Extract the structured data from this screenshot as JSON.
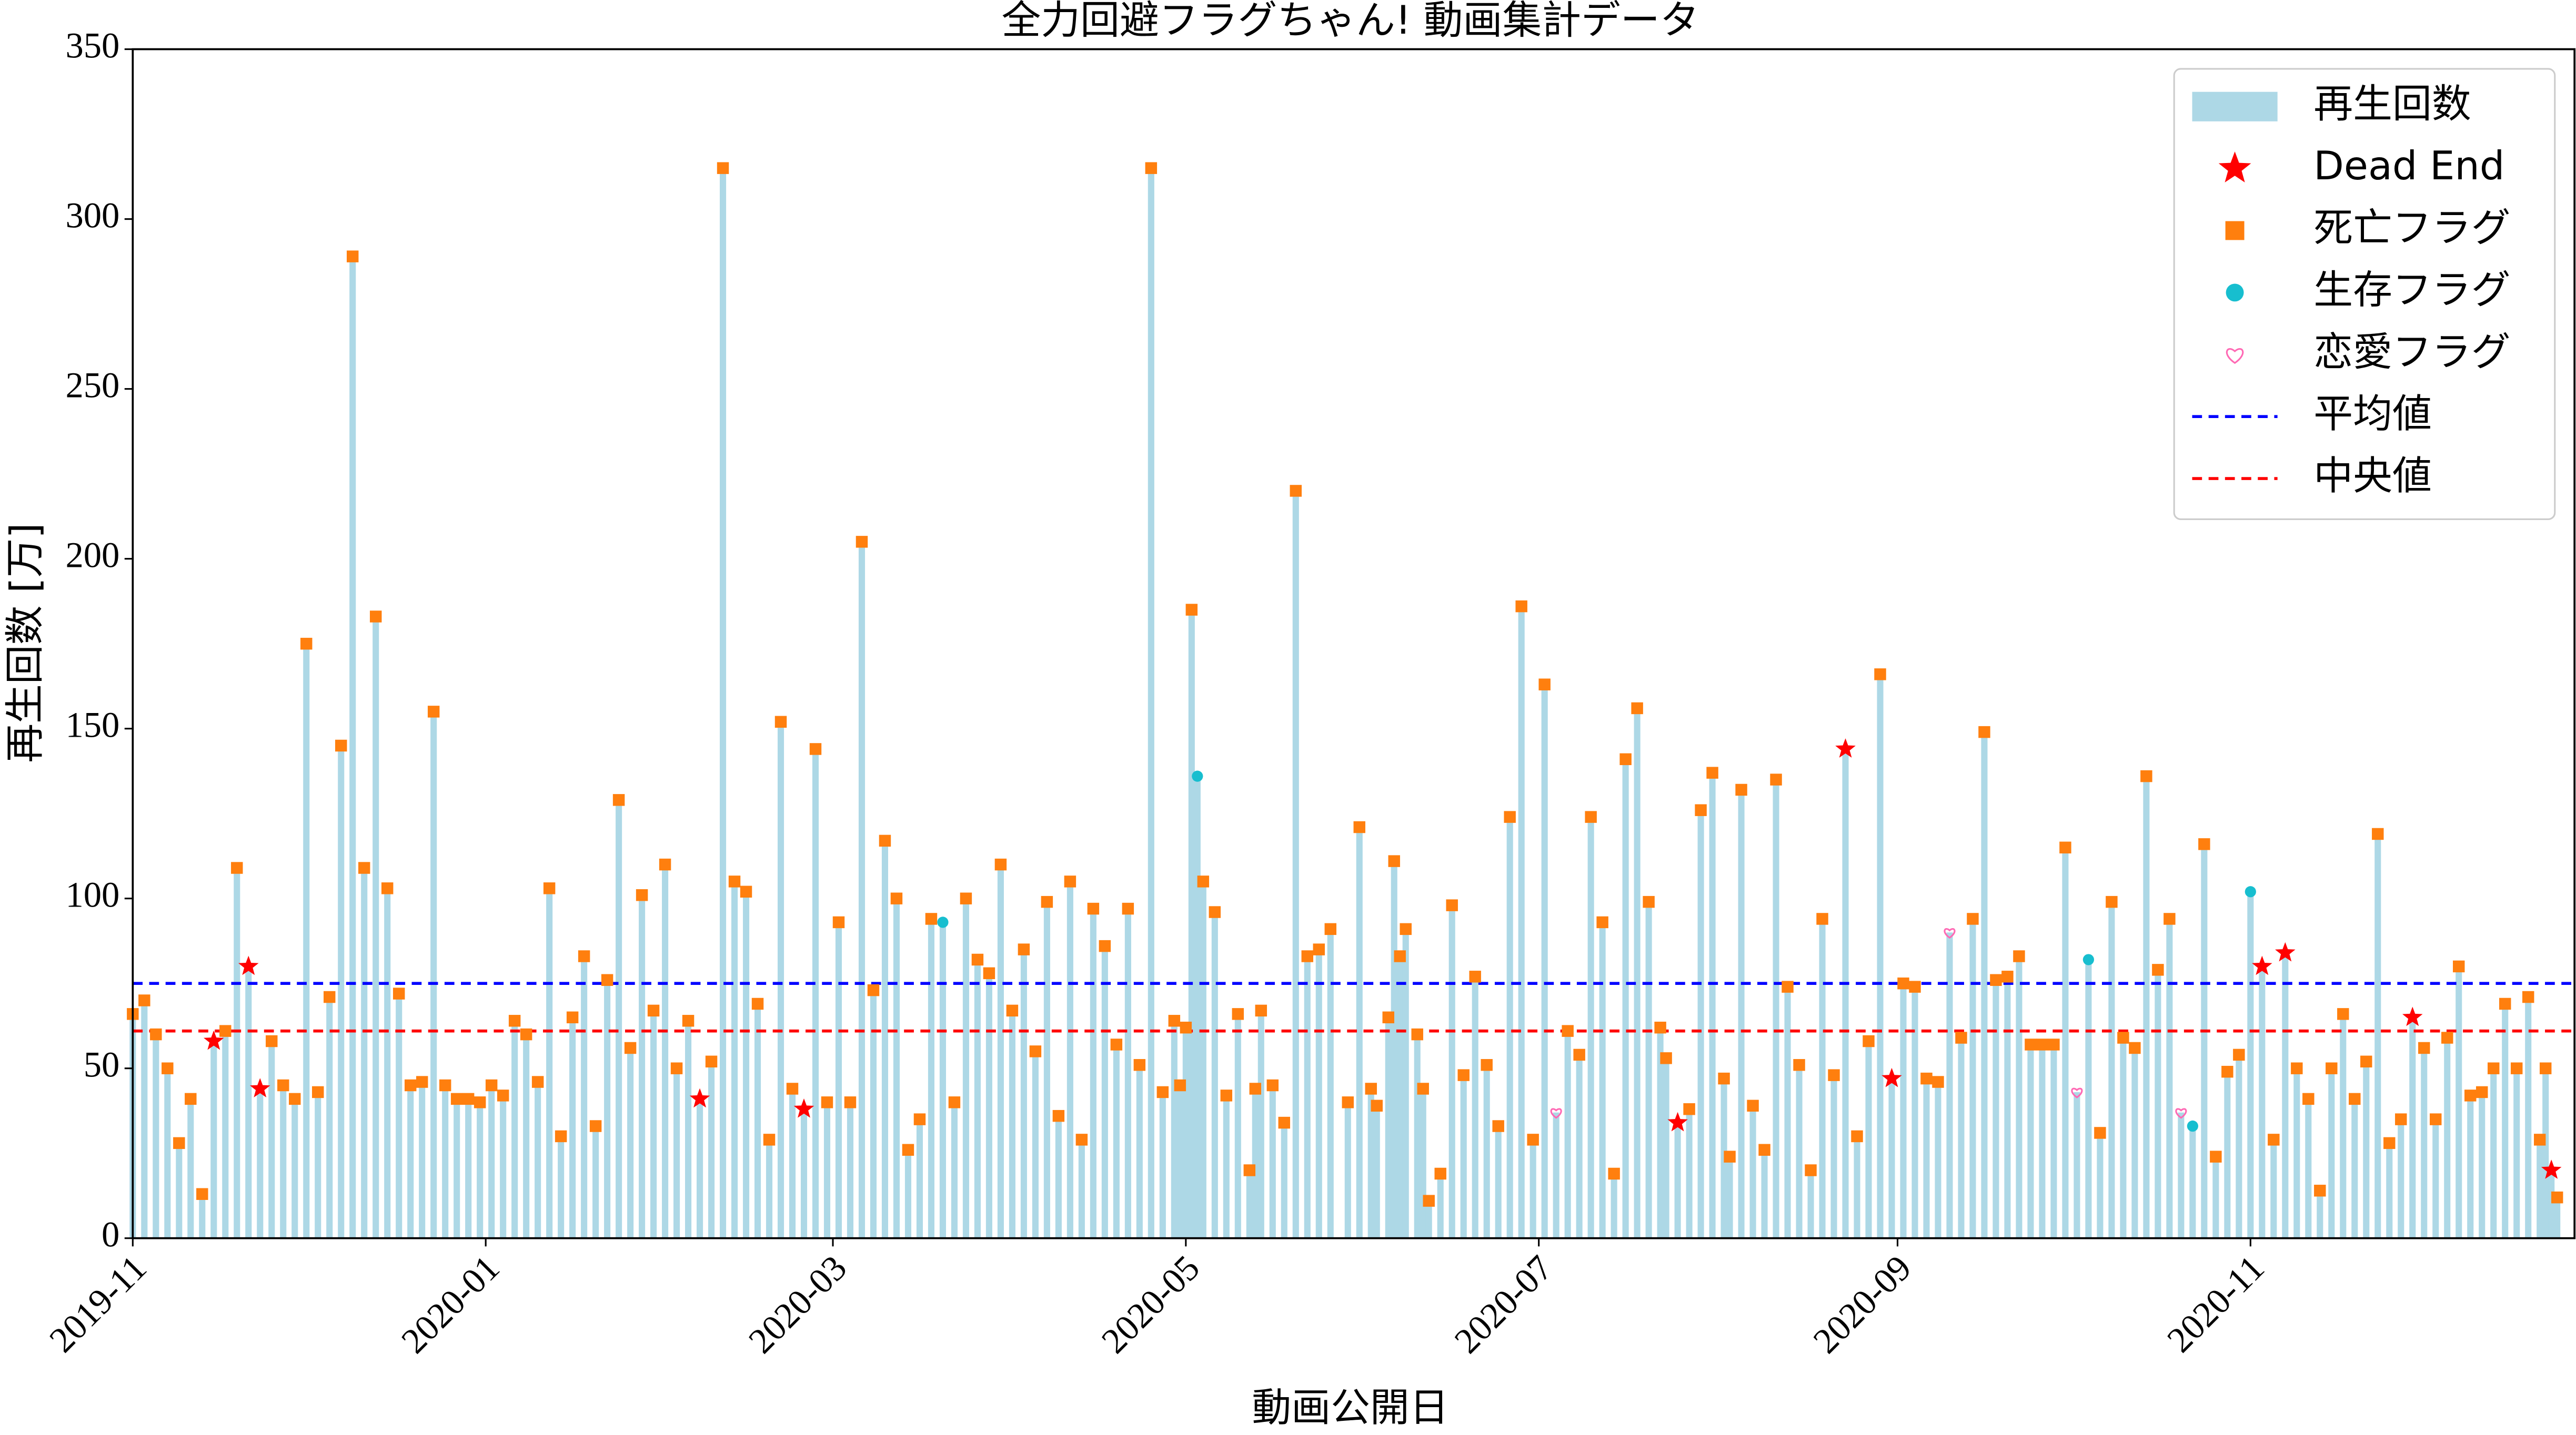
{
  "chart_data": {
    "type": "bar",
    "title": "全力回避フラグちゃん! 動画集計データ",
    "xlabel": "動画公開日",
    "ylabel": "再生回数 [万]",
    "xlim": [
      "2019-11-01",
      "2020-12-27"
    ],
    "xticks": [
      {
        "value": "2019-11-01",
        "label": "2019-11"
      },
      {
        "value": "2020-01-01",
        "label": "2020-01"
      },
      {
        "value": "2020-03-01",
        "label": "2020-03"
      },
      {
        "value": "2020-05-01",
        "label": "2020-05"
      },
      {
        "value": "2020-07-01",
        "label": "2020-07"
      },
      {
        "value": "2020-09-01",
        "label": "2020-09"
      },
      {
        "value": "2020-11-01",
        "label": "2020-11"
      }
    ],
    "ylim": [
      0,
      350
    ],
    "yticks": [
      0,
      50,
      100,
      150,
      200,
      250,
      300,
      350
    ],
    "legend": "upper right",
    "x": [
      "2019-11-01",
      "2019-11-03",
      "2019-11-05",
      "2019-11-07",
      "2019-11-09",
      "2019-11-11",
      "2019-11-13",
      "2019-11-15",
      "2019-11-17",
      "2019-11-19",
      "2019-11-21",
      "2019-11-23",
      "2019-11-25",
      "2019-11-27",
      "2019-11-29",
      "2019-12-01",
      "2019-12-03",
      "2019-12-05",
      "2019-12-07",
      "2019-12-09",
      "2019-12-11",
      "2019-12-13",
      "2019-12-15",
      "2019-12-17",
      "2019-12-19",
      "2019-12-21",
      "2019-12-23",
      "2019-12-25",
      "2019-12-27",
      "2019-12-29",
      "2019-12-31",
      "2020-01-02",
      "2020-01-04",
      "2020-01-06",
      "2020-01-08",
      "2020-01-10",
      "2020-01-12",
      "2020-01-14",
      "2020-01-16",
      "2020-01-18",
      "2020-01-20",
      "2020-01-22",
      "2020-01-24",
      "2020-01-26",
      "2020-01-28",
      "2020-01-30",
      "2020-02-01",
      "2020-02-03",
      "2020-02-05",
      "2020-02-07",
      "2020-02-09",
      "2020-02-11",
      "2020-02-13",
      "2020-02-15",
      "2020-02-17",
      "2020-02-19",
      "2020-02-21",
      "2020-02-23",
      "2020-02-25",
      "2020-02-27",
      "2020-02-29",
      "2020-03-02",
      "2020-03-04",
      "2020-03-06",
      "2020-03-08",
      "2020-03-10",
      "2020-03-12",
      "2020-03-14",
      "2020-03-16",
      "2020-03-18",
      "2020-03-20",
      "2020-03-22",
      "2020-03-24",
      "2020-03-26",
      "2020-03-28",
      "2020-03-30",
      "2020-04-01",
      "2020-04-03",
      "2020-04-05",
      "2020-04-07",
      "2020-04-09",
      "2020-04-11",
      "2020-04-13",
      "2020-04-15",
      "2020-04-17",
      "2020-04-19",
      "2020-04-21",
      "2020-04-23",
      "2020-04-25",
      "2020-04-27",
      "2020-04-29",
      "2020-04-30",
      "2020-05-01",
      "2020-05-02",
      "2020-05-03",
      "2020-05-04",
      "2020-05-06",
      "2020-05-08",
      "2020-05-10",
      "2020-05-12",
      "2020-05-13",
      "2020-05-14",
      "2020-05-16",
      "2020-05-18",
      "2020-05-20",
      "2020-05-22",
      "2020-05-24",
      "2020-05-26",
      "2020-05-29",
      "2020-05-31",
      "2020-06-02",
      "2020-06-03",
      "2020-06-05",
      "2020-06-06",
      "2020-06-07",
      "2020-06-08",
      "2020-06-10",
      "2020-06-11",
      "2020-06-12",
      "2020-06-14",
      "2020-06-16",
      "2020-06-18",
      "2020-06-20",
      "2020-06-22",
      "2020-06-24",
      "2020-06-26",
      "2020-06-28",
      "2020-06-30",
      "2020-07-02",
      "2020-07-04",
      "2020-07-06",
      "2020-07-08",
      "2020-07-10",
      "2020-07-12",
      "2020-07-14",
      "2020-07-16",
      "2020-07-18",
      "2020-07-20",
      "2020-07-22",
      "2020-07-23",
      "2020-07-25",
      "2020-07-27",
      "2020-07-29",
      "2020-07-31",
      "2020-08-02",
      "2020-08-03",
      "2020-08-05",
      "2020-08-07",
      "2020-08-09",
      "2020-08-11",
      "2020-08-13",
      "2020-08-15",
      "2020-08-17",
      "2020-08-19",
      "2020-08-21",
      "2020-08-23",
      "2020-08-25",
      "2020-08-27",
      "2020-08-29",
      "2020-08-31",
      "2020-09-02",
      "2020-09-04",
      "2020-09-06",
      "2020-09-08",
      "2020-09-10",
      "2020-09-12",
      "2020-09-14",
      "2020-09-16",
      "2020-09-18",
      "2020-09-20",
      "2020-09-22",
      "2020-09-24",
      "2020-09-26",
      "2020-09-28",
      "2020-09-30",
      "2020-10-02",
      "2020-10-04",
      "2020-10-06",
      "2020-10-08",
      "2020-10-10",
      "2020-10-12",
      "2020-10-14",
      "2020-10-16",
      "2020-10-18",
      "2020-10-20",
      "2020-10-22",
      "2020-10-24",
      "2020-10-26",
      "2020-10-28",
      "2020-10-30",
      "2020-11-01",
      "2020-11-03",
      "2020-11-05",
      "2020-11-07",
      "2020-11-09",
      "2020-11-11",
      "2020-11-13",
      "2020-11-15",
      "2020-11-17",
      "2020-11-19",
      "2020-11-21",
      "2020-11-23",
      "2020-11-25",
      "2020-11-27",
      "2020-11-29",
      "2020-12-01",
      "2020-12-03",
      "2020-12-05",
      "2020-12-07",
      "2020-12-09",
      "2020-12-11",
      "2020-12-13",
      "2020-12-15",
      "2020-12-17",
      "2020-12-19",
      "2020-12-21",
      "2020-12-22",
      "2020-12-23",
      "2020-12-24"
    ],
    "series": [
      {
        "name": "再生回数",
        "marker": "bar",
        "color": "#add8e6",
        "values": [
          66,
          70,
          60,
          50,
          28,
          41,
          13,
          58,
          61,
          109,
          80,
          44,
          58,
          45,
          41,
          175,
          43,
          71,
          145,
          289,
          109,
          183,
          103,
          72,
          45,
          46,
          155,
          45,
          41,
          41,
          40,
          45,
          42,
          64,
          60,
          46,
          103,
          30,
          65,
          83,
          33,
          76,
          129,
          56,
          101,
          67,
          110,
          50,
          64,
          41,
          52,
          315,
          105,
          102,
          69,
          29,
          152,
          44,
          38,
          144,
          40,
          93,
          40,
          205,
          73,
          117,
          100,
          26,
          35,
          94,
          93,
          40,
          100,
          82,
          78,
          110,
          67,
          85,
          55,
          99,
          36,
          105,
          29,
          97,
          86,
          57,
          97,
          51,
          315,
          43,
          64,
          45,
          62,
          185,
          136,
          105,
          96,
          42,
          66,
          20,
          44,
          67,
          45,
          34,
          220,
          83,
          85,
          91,
          40,
          121,
          44,
          39,
          65,
          111,
          83,
          91,
          60,
          44,
          11,
          19,
          98,
          48,
          77,
          51,
          33,
          124,
          186,
          29,
          163,
          37,
          61,
          54,
          124,
          93,
          19,
          141,
          156,
          99,
          62,
          53,
          34,
          38,
          126,
          137,
          47,
          24,
          132,
          39,
          26,
          135,
          74,
          51,
          20,
          94,
          48,
          144,
          30,
          58,
          166,
          47,
          75,
          74,
          47,
          46,
          90,
          59,
          94,
          149,
          76,
          77,
          83,
          57,
          57,
          57,
          115,
          43,
          82,
          31,
          99,
          59,
          56,
          136,
          79,
          94,
          37,
          33,
          116,
          24,
          49,
          54,
          102,
          80,
          29,
          84,
          50,
          41,
          14,
          50,
          66,
          41,
          52,
          119,
          28,
          35,
          65,
          56,
          35,
          59,
          80,
          42,
          43,
          50,
          69,
          50,
          71,
          29,
          50,
          20,
          12
        ]
      },
      {
        "name": "Dead End",
        "marker": "star",
        "color": "#ff0000",
        "x": [
          "2019-11-15",
          "2019-11-21",
          "2019-11-23",
          "2020-02-07",
          "2020-02-25",
          "2020-07-25",
          "2020-08-23",
          "2020-08-31",
          "2020-11-03",
          "2020-11-07",
          "2020-11-29",
          "2020-12-23"
        ],
        "values": [
          58,
          80,
          44,
          41,
          38,
          34,
          144,
          47,
          80,
          84,
          65,
          20
        ]
      },
      {
        "name": "死亡フラグ",
        "marker": "square",
        "color": "#ff7f0e",
        "x": [
          "2019-11-01",
          "2019-11-03",
          "2019-11-05",
          "2019-11-07",
          "2019-11-09",
          "2019-11-11",
          "2019-11-13",
          "2019-11-17",
          "2019-11-19",
          "2019-11-25",
          "2019-11-27",
          "2019-11-29",
          "2019-12-01",
          "2019-12-03",
          "2019-12-05",
          "2019-12-07",
          "2019-12-09",
          "2019-12-11",
          "2019-12-13",
          "2019-12-15",
          "2019-12-17",
          "2019-12-19",
          "2019-12-21",
          "2019-12-23",
          "2019-12-25",
          "2019-12-27",
          "2019-12-29",
          "2019-12-31",
          "2020-01-02",
          "2020-01-04",
          "2020-01-06",
          "2020-01-08",
          "2020-01-10",
          "2020-01-12",
          "2020-01-14",
          "2020-01-16",
          "2020-01-18",
          "2020-01-20",
          "2020-01-22",
          "2020-01-24",
          "2020-01-26",
          "2020-01-28",
          "2020-01-30",
          "2020-02-01",
          "2020-02-03",
          "2020-02-05",
          "2020-02-09",
          "2020-02-11",
          "2020-02-13",
          "2020-02-15",
          "2020-02-17",
          "2020-02-19",
          "2020-02-21",
          "2020-02-23",
          "2020-02-27",
          "2020-02-29",
          "2020-03-02",
          "2020-03-04",
          "2020-03-06",
          "2020-03-08",
          "2020-03-10",
          "2020-03-12",
          "2020-03-14",
          "2020-03-16",
          "2020-03-18",
          "2020-03-22",
          "2020-03-24",
          "2020-03-26",
          "2020-03-28",
          "2020-03-30",
          "2020-04-01",
          "2020-04-03",
          "2020-04-05",
          "2020-04-07",
          "2020-04-09",
          "2020-04-11",
          "2020-04-13",
          "2020-04-15",
          "2020-04-17",
          "2020-04-19",
          "2020-04-21",
          "2020-04-23",
          "2020-04-25",
          "2020-04-27",
          "2020-04-29",
          "2020-04-30",
          "2020-05-01",
          "2020-05-02",
          "2020-05-04",
          "2020-05-06",
          "2020-05-08",
          "2020-05-10",
          "2020-05-12",
          "2020-05-13",
          "2020-05-14",
          "2020-05-16",
          "2020-05-18",
          "2020-05-20",
          "2020-05-22",
          "2020-05-24",
          "2020-05-26",
          "2020-05-29",
          "2020-05-31",
          "2020-06-02",
          "2020-06-03",
          "2020-06-05",
          "2020-06-06",
          "2020-06-07",
          "2020-06-08",
          "2020-06-10",
          "2020-06-11",
          "2020-06-12",
          "2020-06-14",
          "2020-06-16",
          "2020-06-18",
          "2020-06-20",
          "2020-06-22",
          "2020-06-24",
          "2020-06-26",
          "2020-06-28",
          "2020-06-30",
          "2020-07-02",
          "2020-07-06",
          "2020-07-08",
          "2020-07-10",
          "2020-07-12",
          "2020-07-14",
          "2020-07-16",
          "2020-07-18",
          "2020-07-20",
          "2020-07-22",
          "2020-07-23",
          "2020-07-27",
          "2020-07-29",
          "2020-07-31",
          "2020-08-02",
          "2020-08-03",
          "2020-08-05",
          "2020-08-07",
          "2020-08-09",
          "2020-08-11",
          "2020-08-13",
          "2020-08-15",
          "2020-08-17",
          "2020-08-19",
          "2020-08-21",
          "2020-08-25",
          "2020-08-27",
          "2020-08-29",
          "2020-09-02",
          "2020-09-04",
          "2020-09-06",
          "2020-09-08",
          "2020-09-12",
          "2020-09-14",
          "2020-09-16",
          "2020-09-18",
          "2020-09-20",
          "2020-09-22",
          "2020-09-24",
          "2020-09-26",
          "2020-09-28",
          "2020-09-30",
          "2020-10-06",
          "2020-10-08",
          "2020-10-10",
          "2020-10-12",
          "2020-10-14",
          "2020-10-16",
          "2020-10-18",
          "2020-10-24",
          "2020-10-26",
          "2020-10-28",
          "2020-10-30",
          "2020-11-05",
          "2020-11-09",
          "2020-11-11",
          "2020-11-13",
          "2020-11-15",
          "2020-11-17",
          "2020-11-19",
          "2020-11-21",
          "2020-11-23",
          "2020-11-25",
          "2020-11-27",
          "2020-12-01",
          "2020-12-03",
          "2020-12-05",
          "2020-12-07",
          "2020-12-09",
          "2020-12-11",
          "2020-12-13",
          "2020-12-15",
          "2020-12-17",
          "2020-12-19",
          "2020-12-21",
          "2020-12-22",
          "2020-12-24"
        ],
        "values": [
          66,
          70,
          60,
          50,
          28,
          41,
          13,
          61,
          109,
          58,
          45,
          41,
          175,
          43,
          71,
          145,
          289,
          109,
          183,
          103,
          72,
          45,
          46,
          155,
          45,
          41,
          41,
          40,
          45,
          42,
          64,
          60,
          46,
          103,
          30,
          65,
          83,
          33,
          76,
          129,
          56,
          101,
          67,
          110,
          50,
          64,
          52,
          315,
          105,
          102,
          69,
          29,
          152,
          44,
          144,
          40,
          93,
          40,
          205,
          73,
          117,
          100,
          26,
          35,
          94,
          40,
          100,
          82,
          78,
          110,
          67,
          85,
          55,
          99,
          36,
          105,
          29,
          97,
          86,
          57,
          97,
          51,
          315,
          43,
          64,
          45,
          62,
          185,
          105,
          96,
          42,
          66,
          20,
          44,
          67,
          45,
          34,
          220,
          83,
          85,
          91,
          40,
          121,
          44,
          39,
          65,
          111,
          83,
          91,
          60,
          44,
          11,
          19,
          98,
          48,
          77,
          51,
          33,
          124,
          186,
          29,
          163,
          61,
          54,
          124,
          93,
          19,
          141,
          156,
          99,
          62,
          53,
          38,
          126,
          137,
          47,
          24,
          132,
          39,
          26,
          135,
          74,
          51,
          20,
          94,
          48,
          30,
          58,
          166,
          75,
          74,
          47,
          46,
          59,
          94,
          149,
          76,
          77,
          83,
          57,
          57,
          57,
          115,
          31,
          99,
          59,
          56,
          136,
          79,
          94,
          116,
          24,
          49,
          54,
          29,
          50,
          41,
          14,
          50,
          66,
          41,
          52,
          119,
          28,
          35,
          56,
          35,
          59,
          80,
          42,
          43,
          50,
          69,
          50,
          71,
          29,
          50,
          12
        ]
      },
      {
        "name": "生存フラグ",
        "marker": "circle",
        "color": "#17becf",
        "x": [
          "2020-03-20",
          "2020-05-03",
          "2020-10-04",
          "2020-10-22",
          "2020-11-01"
        ],
        "values": [
          93,
          136,
          82,
          33,
          102
        ]
      },
      {
        "name": "恋愛フラグ",
        "marker": "heart",
        "color": "#ff69b4",
        "x": [
          "2020-07-04",
          "2020-09-10",
          "2020-10-02",
          "2020-10-20"
        ],
        "values": [
          37,
          90,
          43,
          37
        ]
      }
    ],
    "lines": [
      {
        "name": "平均値",
        "color": "#0000ff",
        "value": 75
      },
      {
        "name": "中央値",
        "color": "#ff0000",
        "value": 61
      }
    ]
  }
}
